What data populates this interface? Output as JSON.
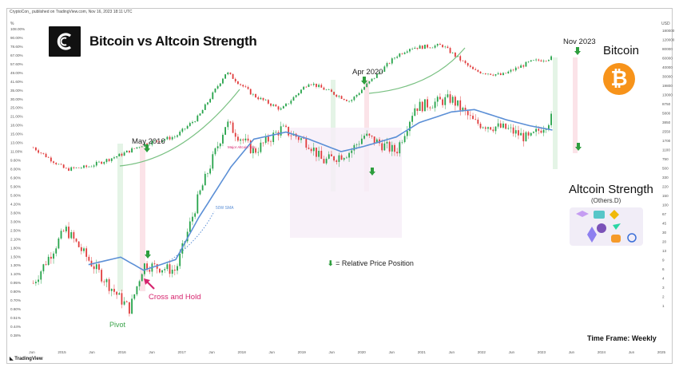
{
  "publisher": "CryptoCon_ published on TradingView.com, Nov 16, 2023 18:11 UTC",
  "title": "Bitcoin vs Altcoin Strength",
  "bitcoin_label": "Bitcoin",
  "altcoin_label": "Altcoin Strength",
  "altcoin_sub": "(Others.D)",
  "timeframe": "Time Frame: Weekly",
  "legend_text": "= Relative Price Position",
  "footer_brand": "TradingView",
  "annotations": {
    "may2016": "May 2016",
    "apr2020": "Apr 2020",
    "nov2023": "Nov 2023",
    "pivot": "Pivot",
    "cross": "Cross and Hold",
    "major_altcoin_top": "Major Altcoin Top",
    "sma_label": "50W SMA"
  },
  "colors": {
    "bull_candle": "#26a34a",
    "bear_candle": "#e03c3c",
    "sma": "#5b8fd6",
    "curve": "#7ac183",
    "arrow": "#2e9e3e",
    "cross": "#d6246e",
    "green_band": "#e4f4e6",
    "pink_band": "#fbe3e8",
    "btc_orange": "#f7931a"
  },
  "axes": {
    "left_unit": "%",
    "left_ticks": [
      "108.00%",
      "90.00%",
      "78.60%",
      "67.00%",
      "57.60%",
      "49.00%",
      "41.60%",
      "35.00%",
      "30.00%",
      "25.00%",
      "21.00%",
      "18.00%",
      "15.00%",
      "13.00%",
      "11.00%",
      "9.60%",
      "8.00%",
      "6.90%",
      "5.90%",
      "5.00%",
      "4.20%",
      "3.60%",
      "3.00%",
      "2.50%",
      "2.10%",
      "1.80%",
      "1.50%",
      "1.30%",
      "1.10%",
      "0.95%",
      "0.80%",
      "0.70%",
      "0.60%",
      "0.51%",
      "0.44%",
      "0.38%"
    ],
    "right_unit": "USD",
    "right_ticks": [
      "180000",
      "120000",
      "80000",
      "60000",
      "40000",
      "30000",
      "19800",
      "13000",
      "8750",
      "5800",
      "3850",
      "2550",
      "1700",
      "1100",
      "750",
      "500",
      "330",
      "220",
      "150",
      "100",
      "67",
      "45",
      "30",
      "20",
      "13",
      "9",
      "6",
      "4",
      "3",
      "2",
      "1"
    ],
    "x_ticks": [
      "Jun",
      "2015",
      "Jun",
      "2016",
      "Jun",
      "2017",
      "Jun",
      "2018",
      "Jun",
      "2019",
      "Jun",
      "2020",
      "Jun",
      "2021",
      "Jun",
      "2022",
      "Jun",
      "2023",
      "Jun",
      "2024",
      "Jun",
      "2025"
    ]
  },
  "chart_data": {
    "type": "line",
    "title": "Bitcoin vs Altcoin Strength",
    "x_label": "",
    "x_range": [
      "2014-05",
      "2025-09"
    ],
    "series": [
      {
        "name": "Bitcoin",
        "axis": "right",
        "unit": "USD",
        "x": [
          "2014-06",
          "2015-01",
          "2015-06",
          "2016-01",
          "2016-06",
          "2017-01",
          "2017-06",
          "2017-12",
          "2018-06",
          "2018-12",
          "2019-06",
          "2020-03",
          "2020-06",
          "2021-01",
          "2021-04",
          "2021-11",
          "2022-06",
          "2022-12",
          "2023-06",
          "2023-11"
        ],
        "values": [
          600,
          220,
          250,
          430,
          700,
          1000,
          2500,
          19000,
          6500,
          3400,
          12000,
          5000,
          9500,
          40000,
          58000,
          65000,
          20000,
          16500,
          30000,
          37000
        ]
      },
      {
        "name": "Altcoin Strength",
        "axis": "left",
        "unit": "%",
        "x": [
          "2014-06",
          "2015-01",
          "2015-06",
          "2016-01",
          "2016-03",
          "2016-06",
          "2017-01",
          "2017-06",
          "2017-12",
          "2018-06",
          "2018-12",
          "2019-06",
          "2019-09",
          "2020-03",
          "2020-06",
          "2021-01",
          "2021-05",
          "2022-01",
          "2022-06",
          "2023-01",
          "2023-06",
          "2023-11"
        ],
        "values": [
          0.9,
          2.1,
          1.3,
          0.7,
          0.6,
          1.2,
          1.1,
          3.5,
          11.0,
          7.0,
          10.0,
          8.0,
          6.0,
          7.0,
          9.0,
          7.0,
          14.0,
          16.0,
          11.0,
          10.0,
          8.5,
          12.0
        ]
      },
      {
        "name": "50W SMA",
        "axis": "left",
        "unit": "%",
        "x": [
          "2015-06",
          "2016-01",
          "2016-06",
          "2017-01",
          "2017-06",
          "2018-01",
          "2018-06",
          "2019-01",
          "2019-06",
          "2020-01",
          "2020-06",
          "2021-01",
          "2021-06",
          "2022-01",
          "2022-06",
          "2023-01",
          "2023-06",
          "2023-11"
        ],
        "values": [
          1.2,
          1.35,
          1.1,
          1.3,
          2.5,
          5.5,
          8.5,
          9.5,
          8.5,
          7.0,
          7.6,
          8.8,
          11.0,
          13.0,
          13.5,
          11.5,
          10.5,
          9.8
        ]
      }
    ],
    "annotations": [
      {
        "label": "May 2016",
        "x": "2016-05"
      },
      {
        "label": "Apr 2020",
        "x": "2020-04"
      },
      {
        "label": "Nov 2023",
        "x": "2023-11"
      },
      {
        "label": "Pivot",
        "x": "2016-01"
      },
      {
        "label": "Cross and Hold",
        "x": "2016-06"
      },
      {
        "label": "Major Altcoin Top",
        "x": "2018-01"
      }
    ],
    "grid": false,
    "log_scale": true
  }
}
